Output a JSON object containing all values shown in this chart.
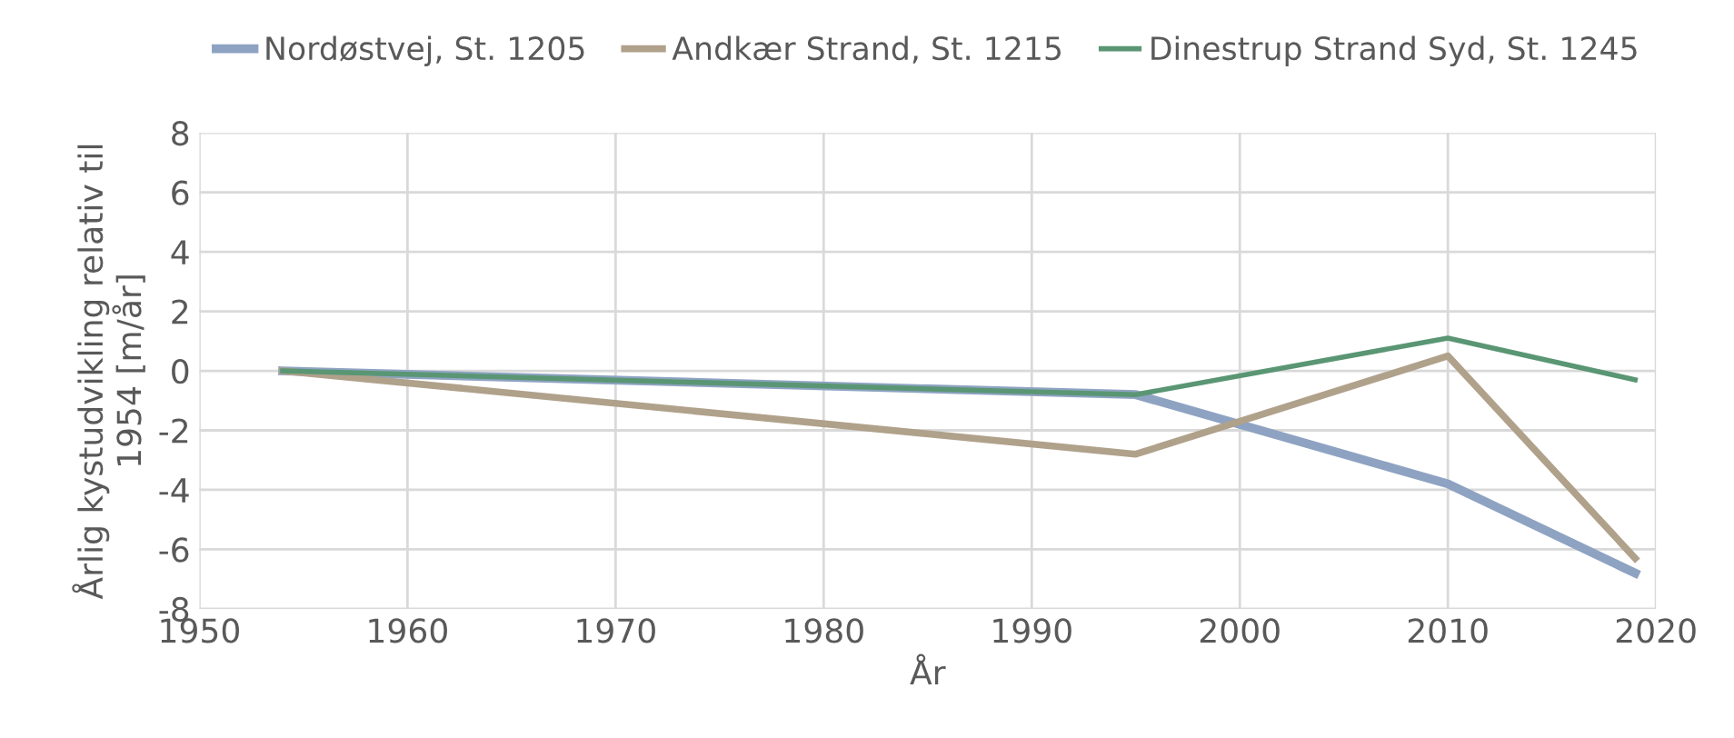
{
  "chart_data": {
    "type": "line",
    "xlabel": "År",
    "ylabel": "Årlig kystudvikling relativ til\n1954 [m/år]",
    "x": [
      1954,
      1995,
      2010,
      2019
    ],
    "series": [
      {
        "name": "Nordøstvej, St. 1205",
        "color": "#8ea3c2",
        "values": [
          0,
          -0.8,
          -3.8,
          -6.8
        ]
      },
      {
        "name": "Andkær Strand, St. 1215",
        "color": "#b0a18b",
        "values": [
          0,
          -2.8,
          0.5,
          -6.3
        ]
      },
      {
        "name": "Dinestrup Strand Syd, St. 1245",
        "color": "#5a9674",
        "values": [
          0,
          -0.8,
          1.1,
          -0.3
        ]
      }
    ],
    "xlim": [
      1950,
      2020
    ],
    "xticks": [
      1950,
      1960,
      1970,
      1980,
      1990,
      2000,
      2010,
      2020
    ],
    "ylim": [
      -8,
      8
    ],
    "yticks": [
      -8,
      -6,
      -4,
      -2,
      0,
      2,
      4,
      6,
      8
    ],
    "grid": true,
    "legend": "top",
    "marker": "none",
    "line_style": "solid"
  }
}
